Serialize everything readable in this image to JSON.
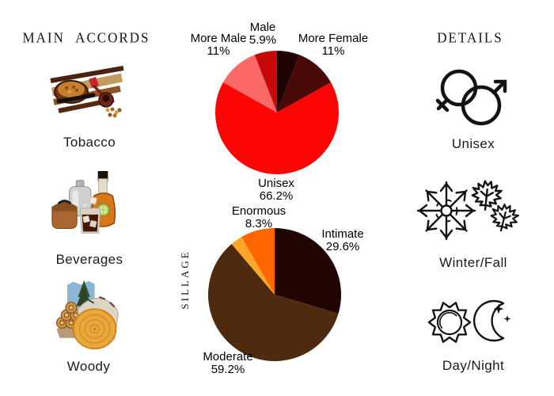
{
  "left_column": {
    "header": "MAIN ACCORDS",
    "accords": [
      {
        "name": "Tobacco",
        "image_icon": "tobacco-photo"
      },
      {
        "name": "Beverages",
        "image_icon": "beverages-photo"
      },
      {
        "name": "Woody",
        "image_icon": "woody-photo"
      }
    ]
  },
  "right_column": {
    "header": "DETAILS",
    "details": [
      {
        "label": "Unisex",
        "icon": "unisex-gender-icon"
      },
      {
        "label": "Winter/Fall",
        "icon": "winter-fall-icon"
      },
      {
        "label": "Day/Night",
        "icon": "day-night-icon"
      }
    ]
  },
  "chart_data": [
    {
      "type": "pie",
      "name": "gender-votes",
      "direction": "clockwise-from-top",
      "legend_position": "labels-around-pie",
      "slices": [
        {
          "label": "",
          "value": 5.9,
          "pct_text": "",
          "color": "#200404"
        },
        {
          "label": "More Female",
          "value": 11,
          "pct_text": "11%",
          "color": "#490906"
        },
        {
          "label": "Unisex",
          "value": 66.2,
          "pct_text": "66.2%",
          "color": "#fb0505"
        },
        {
          "label": "More Male",
          "value": 11,
          "pct_text": "11%",
          "color": "#fb6868"
        },
        {
          "label": "Male",
          "value": 5.9,
          "pct_text": "5.9%",
          "color": "#c80909"
        }
      ]
    },
    {
      "type": "pie",
      "name": "sillage",
      "axis_label": "SILLAGE",
      "direction": "clockwise-from-top",
      "legend_position": "labels-around-pie",
      "slices": [
        {
          "label": "Intimate",
          "value": 29.6,
          "pct_text": "29.6%",
          "color": "#200502"
        },
        {
          "label": "Moderate",
          "value": 59.2,
          "pct_text": "59.2%",
          "color": "#4e2a0f"
        },
        {
          "label": "",
          "value": 2.9,
          "pct_text": "",
          "color": "#ffa629"
        },
        {
          "label": "Enormous",
          "value": 8.3,
          "pct_text": "8.3%",
          "color": "#ff6600"
        }
      ]
    }
  ]
}
